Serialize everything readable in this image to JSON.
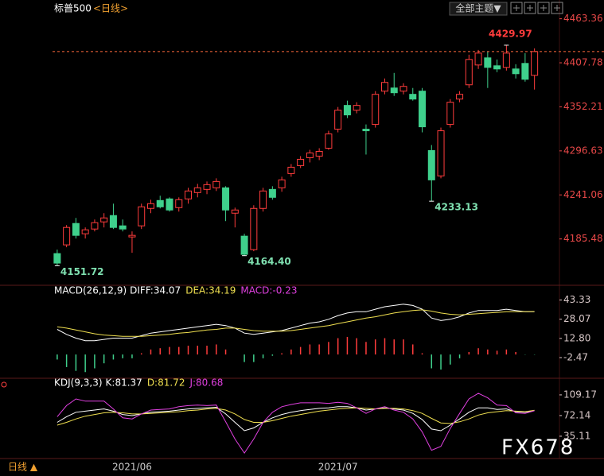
{
  "ui": {
    "theme_button": "全部主题▼",
    "period_tab": "日线 ▲",
    "watermark": "FX678"
  },
  "chart_data": [
    {
      "type": "candlestick",
      "title": "标普500",
      "subtitle": "<日线>",
      "categories": [
        null,
        null,
        null,
        null,
        null,
        null,
        null,
        null,
        "2021/06",
        null,
        null,
        null,
        null,
        null,
        null,
        null,
        null,
        null,
        null,
        null,
        null,
        null,
        null,
        null,
        null,
        null,
        null,
        null,
        null,
        null,
        "2021/07",
        null,
        null,
        null,
        null,
        null,
        null,
        null,
        null,
        null,
        null,
        null,
        null,
        null,
        null,
        null,
        null,
        null,
        null,
        null,
        null,
        null
      ],
      "open": [
        4167,
        4178,
        4205,
        4192,
        4198,
        4207,
        4215,
        4202,
        4188,
        4202,
        4224,
        4234,
        4236,
        4225,
        4236,
        4244,
        4248,
        4250,
        4250,
        4218,
        4189,
        4172,
        4224,
        4248,
        4250,
        4268,
        4278,
        4288,
        4290,
        4300,
        4324,
        4354,
        4348,
        4324,
        4330,
        4372,
        4376,
        4372,
        4368,
        4372,
        4297,
        4265,
        4330,
        4362,
        4380,
        4405,
        4414,
        4404,
        4402,
        4400,
        4407,
        4392
      ],
      "high": [
        4172,
        4203,
        4212,
        4200,
        4210,
        4218,
        4230,
        4210,
        4195,
        4230,
        4235,
        4240,
        4238,
        4238,
        4250,
        4255,
        4258,
        4262,
        4252,
        4225,
        4192,
        4228,
        4250,
        4252,
        4264,
        4280,
        4290,
        4298,
        4300,
        4322,
        4352,
        4360,
        4358,
        4330,
        4372,
        4388,
        4395,
        4382,
        4376,
        4376,
        4304,
        4326,
        4362,
        4372,
        4418,
        4424,
        4422,
        4412,
        4429.97,
        4406,
        4420,
        4426
      ],
      "low": [
        4151.72,
        4175,
        4186,
        4186,
        4195,
        4200,
        4198,
        4195,
        4168,
        4198,
        4218,
        4224,
        4220,
        4220,
        4230,
        4238,
        4242,
        4246,
        4208,
        4200,
        4164.4,
        4170,
        4220,
        4235,
        4245,
        4264,
        4275,
        4282,
        4285,
        4298,
        4320,
        4338,
        4344,
        4292,
        4326,
        4368,
        4366,
        4368,
        4360,
        4320,
        4233.13,
        4262,
        4326,
        4358,
        4376,
        4400,
        4376,
        4396,
        4398,
        4388,
        4384,
        4374
      ],
      "close": [
        4155,
        4200,
        4190,
        4197,
        4206,
        4212,
        4200,
        4198,
        4190,
        4226,
        4230,
        4226,
        4222,
        4235,
        4246,
        4250,
        4254,
        4258,
        4222,
        4222,
        4166,
        4224,
        4246,
        4238,
        4260,
        4276,
        4286,
        4294,
        4296,
        4318,
        4348,
        4342,
        4354,
        4322,
        4368,
        4383,
        4370,
        4378,
        4362,
        4327,
        4260,
        4322,
        4358,
        4368,
        4412,
        4420,
        4402,
        4400,
        4420,
        4394,
        4387,
        4422
      ],
      "up_color": "#ff3c3c",
      "down_color": "#3fd08c",
      "axis_color": "#e84848",
      "ylim": [
        4130,
        4475
      ],
      "yticks": [
        4463.36,
        4407.78,
        4352.21,
        4296.63,
        4241.06,
        4185.48
      ],
      "annotations": [
        4429.97,
        4233.13,
        {
          "value": 4164.4,
          "label": "4164.40"
        },
        4151.72
      ]
    },
    {
      "type": "line",
      "title": "MACD(26,12,9)",
      "ylim": [
        -17,
        50
      ],
      "axis_color": "#d8c8c8",
      "yticks": [
        43.33,
        28.07,
        {
          "value": 12.8,
          "label": "12.80"
        },
        -2.47
      ],
      "series": [
        {
          "name": "DIFF:34.07",
          "style": "line",
          "color": "#ffffff",
          "values": [
            20,
            16,
            13,
            11,
            11,
            12,
            13,
            13,
            13,
            15,
            17,
            18,
            19,
            20,
            21,
            22,
            23,
            24,
            23,
            21,
            17,
            16,
            17,
            18,
            19,
            21,
            23,
            25,
            26,
            28,
            31,
            33,
            34,
            34,
            36,
            38,
            39,
            40,
            39,
            36,
            29,
            27,
            28,
            30,
            33,
            35,
            35,
            35,
            36,
            35,
            34,
            34.07
          ]
        },
        {
          "name": "DEA:34.19",
          "style": "line",
          "color": "#f0e050",
          "values": [
            22,
            21,
            19.5,
            18,
            16.5,
            15.5,
            15,
            14.5,
            14.5,
            14.5,
            15,
            15.5,
            16,
            17,
            17.5,
            18.5,
            19.5,
            20,
            21,
            21,
            20,
            19,
            18.5,
            18.5,
            18.5,
            19,
            20,
            21,
            22,
            23,
            24.5,
            26,
            27.5,
            29,
            30,
            31.5,
            33,
            34,
            35,
            35.5,
            34.5,
            33,
            32,
            31.5,
            32,
            32.5,
            33,
            33.5,
            34,
            34,
            34.1,
            34.19
          ]
        },
        {
          "name": "MACD:-0.23",
          "style": "bar",
          "color": "#e040e0",
          "pos_color": "#ff3c3c",
          "neg_color": "#3fd08c",
          "values": [
            -4,
            -10,
            -13,
            -14,
            -11,
            -7,
            -4,
            -3,
            -3,
            1,
            4,
            5,
            6,
            6,
            7,
            7,
            7,
            8,
            4,
            0,
            -6,
            -6,
            -3,
            -1,
            1,
            4,
            6,
            8,
            8,
            10,
            13,
            14,
            13,
            10,
            12,
            13,
            12,
            12,
            8,
            1,
            -11,
            -12,
            -8,
            -3,
            2,
            5,
            4,
            3,
            4,
            2,
            -0.2,
            -0.23
          ]
        }
      ]
    },
    {
      "type": "line",
      "title": "KDJ(9,3,3)",
      "ylim": [
        -2,
        129
      ],
      "axis_color": "#d8c8c8",
      "yticks": [
        109.17,
        72.14,
        35.11
      ],
      "series": [
        {
          "name": "K:81.37",
          "style": "line",
          "color": "#ffffff",
          "values": [
            60,
            70,
            78,
            80,
            82,
            84,
            80,
            74,
            72,
            75,
            78,
            79,
            80,
            82,
            84,
            85,
            86,
            87,
            75,
            60,
            45,
            50,
            60,
            68,
            74,
            78,
            81,
            83,
            85,
            86,
            88,
            88,
            86,
            82,
            84,
            86,
            84,
            82,
            76,
            65,
            48,
            45,
            55,
            66,
            78,
            86,
            86,
            83,
            84,
            79,
            78,
            81.37
          ]
        },
        {
          "name": "D:81.72",
          "style": "line",
          "color": "#f0e050",
          "values": [
            55,
            60,
            66,
            71,
            74,
            77,
            78,
            77,
            75,
            75,
            76,
            77,
            78,
            79,
            81,
            82,
            84,
            85,
            82,
            75,
            65,
            60,
            60,
            63,
            67,
            71,
            74,
            77,
            80,
            82,
            84,
            85,
            86,
            85,
            84,
            85,
            85,
            84,
            81,
            76,
            67,
            59,
            58,
            61,
            66,
            73,
            77,
            79,
            81,
            80,
            79,
            81.72
          ]
        },
        {
          "name": "J:80.68",
          "style": "line",
          "color": "#e040e0",
          "values": [
            70,
            90,
            102,
            98,
            98,
            98,
            84,
            68,
            66,
            75,
            82,
            83,
            84,
            88,
            90,
            91,
            90,
            91,
            61,
            30,
            5,
            30,
            60,
            78,
            88,
            92,
            95,
            95,
            95,
            94,
            96,
            94,
            86,
            76,
            84,
            88,
            82,
            78,
            66,
            43,
            10,
            17,
            49,
            76,
            102,
            112,
            104,
            91,
            90,
            77,
            76,
            80.68
          ]
        }
      ]
    }
  ]
}
